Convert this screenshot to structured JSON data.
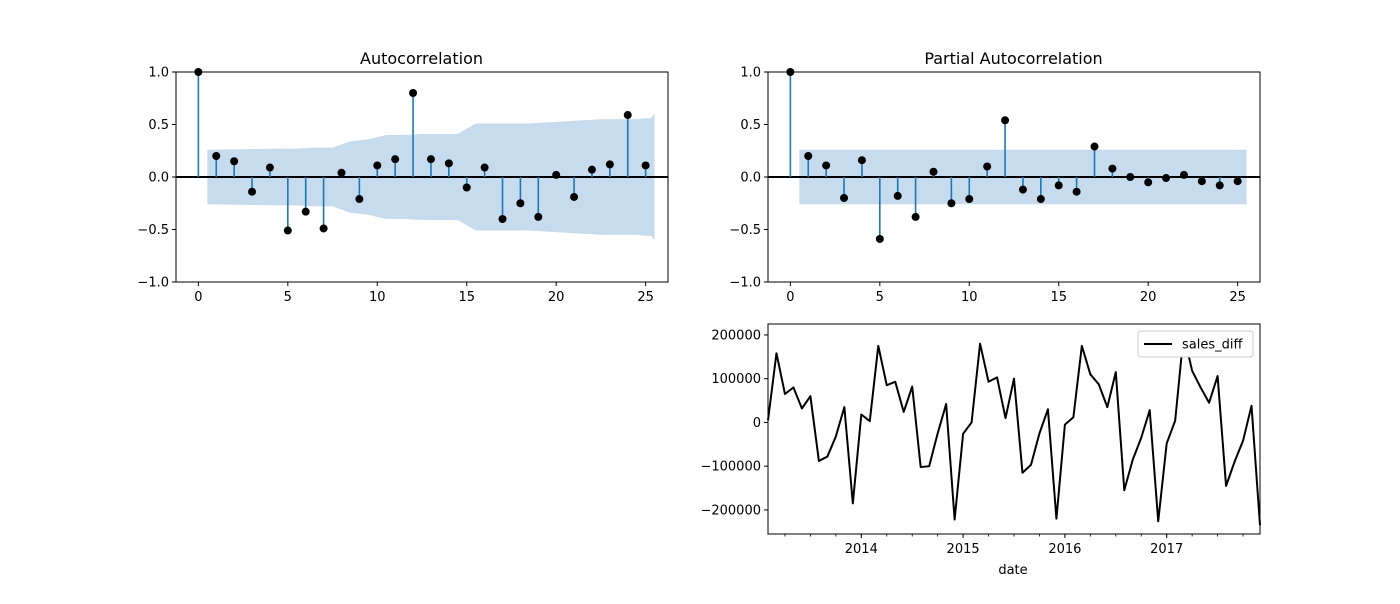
{
  "chart_data": [
    {
      "type": "stem",
      "title": "Autocorrelation",
      "xlim": [
        -1.25,
        26.25
      ],
      "ylim": [
        -1.0,
        1.0
      ],
      "xticks": [
        0,
        5,
        10,
        15,
        20,
        25
      ],
      "yticks": [
        -1.0,
        -0.5,
        0.0,
        0.5,
        1.0
      ],
      "ytick_labels": [
        "−1.0",
        "−0.5",
        "0.0",
        "0.5",
        "1.0"
      ],
      "lags": [
        0,
        1,
        2,
        3,
        4,
        5,
        6,
        7,
        8,
        9,
        10,
        11,
        12,
        13,
        14,
        15,
        16,
        17,
        18,
        19,
        20,
        21,
        22,
        23,
        24,
        25
      ],
      "values": [
        1.0,
        0.2,
        0.15,
        -0.14,
        0.09,
        -0.51,
        -0.33,
        -0.49,
        0.04,
        -0.21,
        0.11,
        0.17,
        0.8,
        0.17,
        0.13,
        -0.1,
        0.09,
        -0.4,
        -0.25,
        -0.38,
        0.02,
        -0.19,
        0.07,
        0.12,
        0.59,
        0.11
      ],
      "confint_upper": [
        0.26,
        0.27,
        0.27,
        0.28,
        0.28,
        0.34,
        0.36,
        0.4,
        0.4,
        0.41,
        0.41,
        0.41,
        0.51,
        0.51,
        0.51,
        0.51,
        0.52,
        0.53,
        0.54,
        0.55,
        0.55,
        0.55,
        0.56,
        0.56,
        0.6
      ],
      "conf_lags": [
        0.5,
        4.5,
        5.5,
        6.5,
        7.5,
        8.5,
        9.5,
        10.5,
        11.5,
        12.5,
        13.5,
        14.5,
        15.5,
        16.5,
        17.5,
        18.5,
        19.5,
        20.5,
        21.5,
        22.5,
        23.5,
        24.5,
        25.0,
        25.3,
        25.5
      ],
      "colors": {
        "stem": "#1f77b4",
        "marker": "#000000",
        "band": "#c6dbed",
        "zero_line": "#000000"
      }
    },
    {
      "type": "stem",
      "title": "Partial Autocorrelation",
      "xlim": [
        -1.25,
        26.25
      ],
      "ylim": [
        -1.0,
        1.0
      ],
      "xticks": [
        0,
        5,
        10,
        15,
        20,
        25
      ],
      "yticks": [
        -1.0,
        -0.5,
        0.0,
        0.5,
        1.0
      ],
      "ytick_labels": [
        "−1.0",
        "−0.5",
        "0.0",
        "0.5",
        "1.0"
      ],
      "lags": [
        0,
        1,
        2,
        3,
        4,
        5,
        6,
        7,
        8,
        9,
        10,
        11,
        12,
        13,
        14,
        15,
        16,
        17,
        18,
        19,
        20,
        21,
        22,
        23,
        24,
        25
      ],
      "values": [
        1.0,
        0.2,
        0.11,
        -0.2,
        0.16,
        -0.59,
        -0.18,
        -0.38,
        0.05,
        -0.25,
        -0.21,
        0.1,
        0.54,
        -0.12,
        -0.21,
        -0.08,
        -0.14,
        0.29,
        0.08,
        0.0,
        -0.05,
        -0.01,
        0.02,
        -0.04,
        -0.08,
        -0.04
      ],
      "confint": 0.26,
      "conf_range": [
        0.5,
        25.5
      ],
      "colors": {
        "stem": "#1f77b4",
        "marker": "#000000",
        "band": "#c6dbed",
        "zero_line": "#000000"
      }
    },
    {
      "type": "line",
      "xlabel": "date",
      "legend": [
        "sales_diff"
      ],
      "legend_position": "top-right",
      "ylim": [
        -255000,
        225000
      ],
      "xlim": [
        "2013-02",
        "2017-12"
      ],
      "yticks": [
        -200000,
        -100000,
        0,
        100000,
        200000
      ],
      "ytick_labels": [
        "−200000",
        "−100000",
        "0",
        "100000",
        "200000"
      ],
      "xticks": [
        "2014-01",
        "2015-01",
        "2016-01",
        "2017-01"
      ],
      "xtick_labels": [
        "2014",
        "2015",
        "2016",
        "2017"
      ],
      "series": [
        {
          "name": "sales_diff",
          "color": "#000000",
          "x": [
            "2013-02",
            "2013-03",
            "2013-04",
            "2013-05",
            "2013-06",
            "2013-07",
            "2013-08",
            "2013-09",
            "2013-10",
            "2013-11",
            "2013-12",
            "2014-01",
            "2014-02",
            "2014-03",
            "2014-04",
            "2014-05",
            "2014-06",
            "2014-07",
            "2014-08",
            "2014-09",
            "2014-10",
            "2014-11",
            "2014-12",
            "2015-01",
            "2015-02",
            "2015-03",
            "2015-04",
            "2015-05",
            "2015-06",
            "2015-07",
            "2015-08",
            "2015-09",
            "2015-10",
            "2015-11",
            "2015-12",
            "2016-01",
            "2016-02",
            "2016-03",
            "2016-04",
            "2016-05",
            "2016-06",
            "2016-07",
            "2016-08",
            "2016-09",
            "2016-10",
            "2016-11",
            "2016-12",
            "2017-01",
            "2017-02",
            "2017-03",
            "2017-04",
            "2017-05",
            "2017-06",
            "2017-07",
            "2017-08",
            "2017-09",
            "2017-10",
            "2017-11",
            "2017-12"
          ],
          "y": [
            5000,
            158000,
            65000,
            80000,
            32000,
            60000,
            -88000,
            -78000,
            -32000,
            35000,
            -185000,
            18000,
            3000,
            175000,
            85000,
            93000,
            24000,
            82000,
            -102000,
            -100000,
            -25000,
            42000,
            -222000,
            -26000,
            0,
            180000,
            93000,
            103000,
            10000,
            100000,
            -115000,
            -97000,
            -25000,
            30000,
            -220000,
            -5000,
            12000,
            175000,
            110000,
            87000,
            35000,
            115000,
            -155000,
            -85000,
            -35000,
            28000,
            -226000,
            -48000,
            4000,
            202000,
            118000,
            80000,
            45000,
            106000,
            -145000,
            -90000,
            -42000,
            38000,
            -235000
          ]
        }
      ]
    }
  ]
}
